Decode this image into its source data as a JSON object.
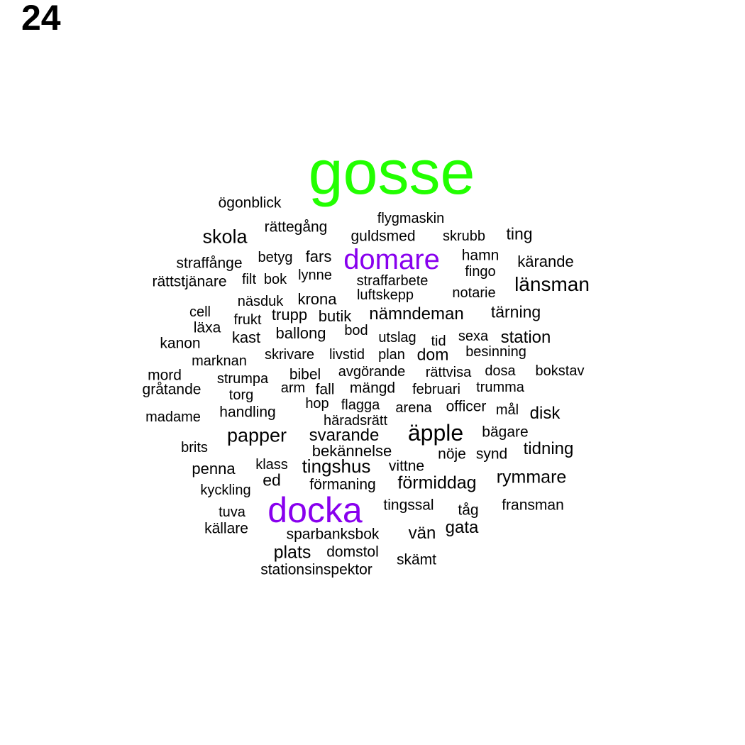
{
  "page_number": "24",
  "colors": {
    "default": "#000000",
    "top": "#22ff00",
    "secondary": "#8800ee"
  },
  "words": [
    {
      "text": "gosse",
      "weight": 100,
      "tier": "top"
    },
    {
      "text": "domare",
      "weight": 52,
      "tier": "secondary"
    },
    {
      "text": "docka",
      "weight": 65,
      "tier": "secondary"
    },
    {
      "text": "äpple",
      "weight": 42,
      "tier": "default"
    },
    {
      "text": "länsman",
      "weight": 36,
      "tier": "default"
    },
    {
      "text": "skola",
      "weight": 35,
      "tier": "default"
    },
    {
      "text": "papper",
      "weight": 35,
      "tier": "default"
    },
    {
      "text": "tingshus",
      "weight": 34,
      "tier": "default"
    },
    {
      "text": "förmiddag",
      "weight": 33,
      "tier": "default"
    },
    {
      "text": "rymmare",
      "weight": 33,
      "tier": "default"
    },
    {
      "text": "plats",
      "weight": 33,
      "tier": "default"
    },
    {
      "text": "station",
      "weight": 32,
      "tier": "default"
    },
    {
      "text": "nämndeman",
      "weight": 32,
      "tier": "default"
    },
    {
      "text": "svarande",
      "weight": 32,
      "tier": "default"
    },
    {
      "text": "tidning",
      "weight": 31,
      "tier": "default"
    },
    {
      "text": "disk",
      "weight": 31,
      "tier": "default"
    },
    {
      "text": "vän",
      "weight": 31,
      "tier": "default"
    },
    {
      "text": "gata",
      "weight": 30,
      "tier": "default"
    },
    {
      "text": "dom",
      "weight": 30,
      "tier": "default"
    },
    {
      "text": "ed",
      "weight": 30,
      "tier": "default"
    },
    {
      "text": "tärning",
      "weight": 30,
      "tier": "default"
    },
    {
      "text": "ting",
      "weight": 30,
      "tier": "default"
    },
    {
      "text": "krona",
      "weight": 29,
      "tier": "default"
    },
    {
      "text": "ballong",
      "weight": 29,
      "tier": "default"
    },
    {
      "text": "fars",
      "weight": 29,
      "tier": "default"
    },
    {
      "text": "butik",
      "weight": 29,
      "tier": "default"
    },
    {
      "text": "bekännelse",
      "weight": 28,
      "tier": "default"
    },
    {
      "text": "trupp",
      "weight": 28,
      "tier": "default"
    },
    {
      "text": "kast",
      "weight": 28,
      "tier": "default"
    },
    {
      "text": "penna",
      "weight": 28,
      "tier": "default"
    },
    {
      "text": "kärande",
      "weight": 28,
      "tier": "default"
    },
    {
      "text": "hamn",
      "weight": 27,
      "tier": "default"
    },
    {
      "text": "ögonblick",
      "weight": 27,
      "tier": "default"
    },
    {
      "text": "rättegång",
      "weight": 27,
      "tier": "default"
    },
    {
      "text": "guldsmed",
      "weight": 27,
      "tier": "default"
    },
    {
      "text": "straffånge",
      "weight": 27,
      "tier": "default"
    },
    {
      "text": "rättstjänare",
      "weight": 27,
      "tier": "default"
    },
    {
      "text": "läxa",
      "weight": 27,
      "tier": "default"
    },
    {
      "text": "kanon",
      "weight": 27,
      "tier": "default"
    },
    {
      "text": "mord",
      "weight": 27,
      "tier": "default"
    },
    {
      "text": "gråtande",
      "weight": 27,
      "tier": "default"
    },
    {
      "text": "bibel",
      "weight": 27,
      "tier": "default"
    },
    {
      "text": "fall",
      "weight": 27,
      "tier": "default"
    },
    {
      "text": "mängd",
      "weight": 27,
      "tier": "default"
    },
    {
      "text": "officer",
      "weight": 27,
      "tier": "default"
    },
    {
      "text": "handling",
      "weight": 27,
      "tier": "default"
    },
    {
      "text": "bägare",
      "weight": 27,
      "tier": "default"
    },
    {
      "text": "nöje",
      "weight": 27,
      "tier": "default"
    },
    {
      "text": "synd",
      "weight": 27,
      "tier": "default"
    },
    {
      "text": "vittne",
      "weight": 27,
      "tier": "default"
    },
    {
      "text": "förmaning",
      "weight": 27,
      "tier": "default"
    },
    {
      "text": "tingssal",
      "weight": 27,
      "tier": "default"
    },
    {
      "text": "tåg",
      "weight": 27,
      "tier": "default"
    },
    {
      "text": "fransman",
      "weight": 27,
      "tier": "default"
    },
    {
      "text": "källare",
      "weight": 27,
      "tier": "default"
    },
    {
      "text": "sparbanksbok",
      "weight": 27,
      "tier": "default"
    },
    {
      "text": "domstol",
      "weight": 27,
      "tier": "default"
    },
    {
      "text": "skämt",
      "weight": 27,
      "tier": "default"
    },
    {
      "text": "stationsinspektor",
      "weight": 27,
      "tier": "default"
    },
    {
      "text": "flygmaskin",
      "weight": 26,
      "tier": "default"
    },
    {
      "text": "skrubb",
      "weight": 26,
      "tier": "default"
    },
    {
      "text": "betyg",
      "weight": 26,
      "tier": "default"
    },
    {
      "text": "lynne",
      "weight": 26,
      "tier": "default"
    },
    {
      "text": "straffarbete",
      "weight": 26,
      "tier": "default"
    },
    {
      "text": "fingo",
      "weight": 26,
      "tier": "default"
    },
    {
      "text": "filt",
      "weight": 26,
      "tier": "default"
    },
    {
      "text": "bok",
      "weight": 26,
      "tier": "default"
    },
    {
      "text": "luftskepp",
      "weight": 26,
      "tier": "default"
    },
    {
      "text": "notarie",
      "weight": 26,
      "tier": "default"
    },
    {
      "text": "näsduk",
      "weight": 26,
      "tier": "default"
    },
    {
      "text": "cell",
      "weight": 26,
      "tier": "default"
    },
    {
      "text": "frukt",
      "weight": 26,
      "tier": "default"
    },
    {
      "text": "bod",
      "weight": 26,
      "tier": "default"
    },
    {
      "text": "utslag",
      "weight": 26,
      "tier": "default"
    },
    {
      "text": "tid",
      "weight": 26,
      "tier": "default"
    },
    {
      "text": "sexa",
      "weight": 26,
      "tier": "default"
    },
    {
      "text": "skrivare",
      "weight": 26,
      "tier": "default"
    },
    {
      "text": "livstid",
      "weight": 26,
      "tier": "default"
    },
    {
      "text": "plan",
      "weight": 26,
      "tier": "default"
    },
    {
      "text": "besinning",
      "weight": 26,
      "tier": "default"
    },
    {
      "text": "marknan",
      "weight": 26,
      "tier": "default"
    },
    {
      "text": "avgörande",
      "weight": 26,
      "tier": "default"
    },
    {
      "text": "rättvisa",
      "weight": 26,
      "tier": "default"
    },
    {
      "text": "dosa",
      "weight": 26,
      "tier": "default"
    },
    {
      "text": "bokstav",
      "weight": 26,
      "tier": "default"
    },
    {
      "text": "strumpa",
      "weight": 26,
      "tier": "default"
    },
    {
      "text": "arm",
      "weight": 26,
      "tier": "default"
    },
    {
      "text": "februari",
      "weight": 26,
      "tier": "default"
    },
    {
      "text": "trumma",
      "weight": 26,
      "tier": "default"
    },
    {
      "text": "torg",
      "weight": 26,
      "tier": "default"
    },
    {
      "text": "hop",
      "weight": 26,
      "tier": "default"
    },
    {
      "text": "flagga",
      "weight": 26,
      "tier": "default"
    },
    {
      "text": "arena",
      "weight": 26,
      "tier": "default"
    },
    {
      "text": "mål",
      "weight": 26,
      "tier": "default"
    },
    {
      "text": "madame",
      "weight": 26,
      "tier": "default"
    },
    {
      "text": "häradsrätt",
      "weight": 26,
      "tier": "default"
    },
    {
      "text": "brits",
      "weight": 26,
      "tier": "default"
    },
    {
      "text": "klass",
      "weight": 26,
      "tier": "default"
    },
    {
      "text": "kyckling",
      "weight": 26,
      "tier": "default"
    },
    {
      "text": "tuva",
      "weight": 26,
      "tier": "default"
    }
  ]
}
